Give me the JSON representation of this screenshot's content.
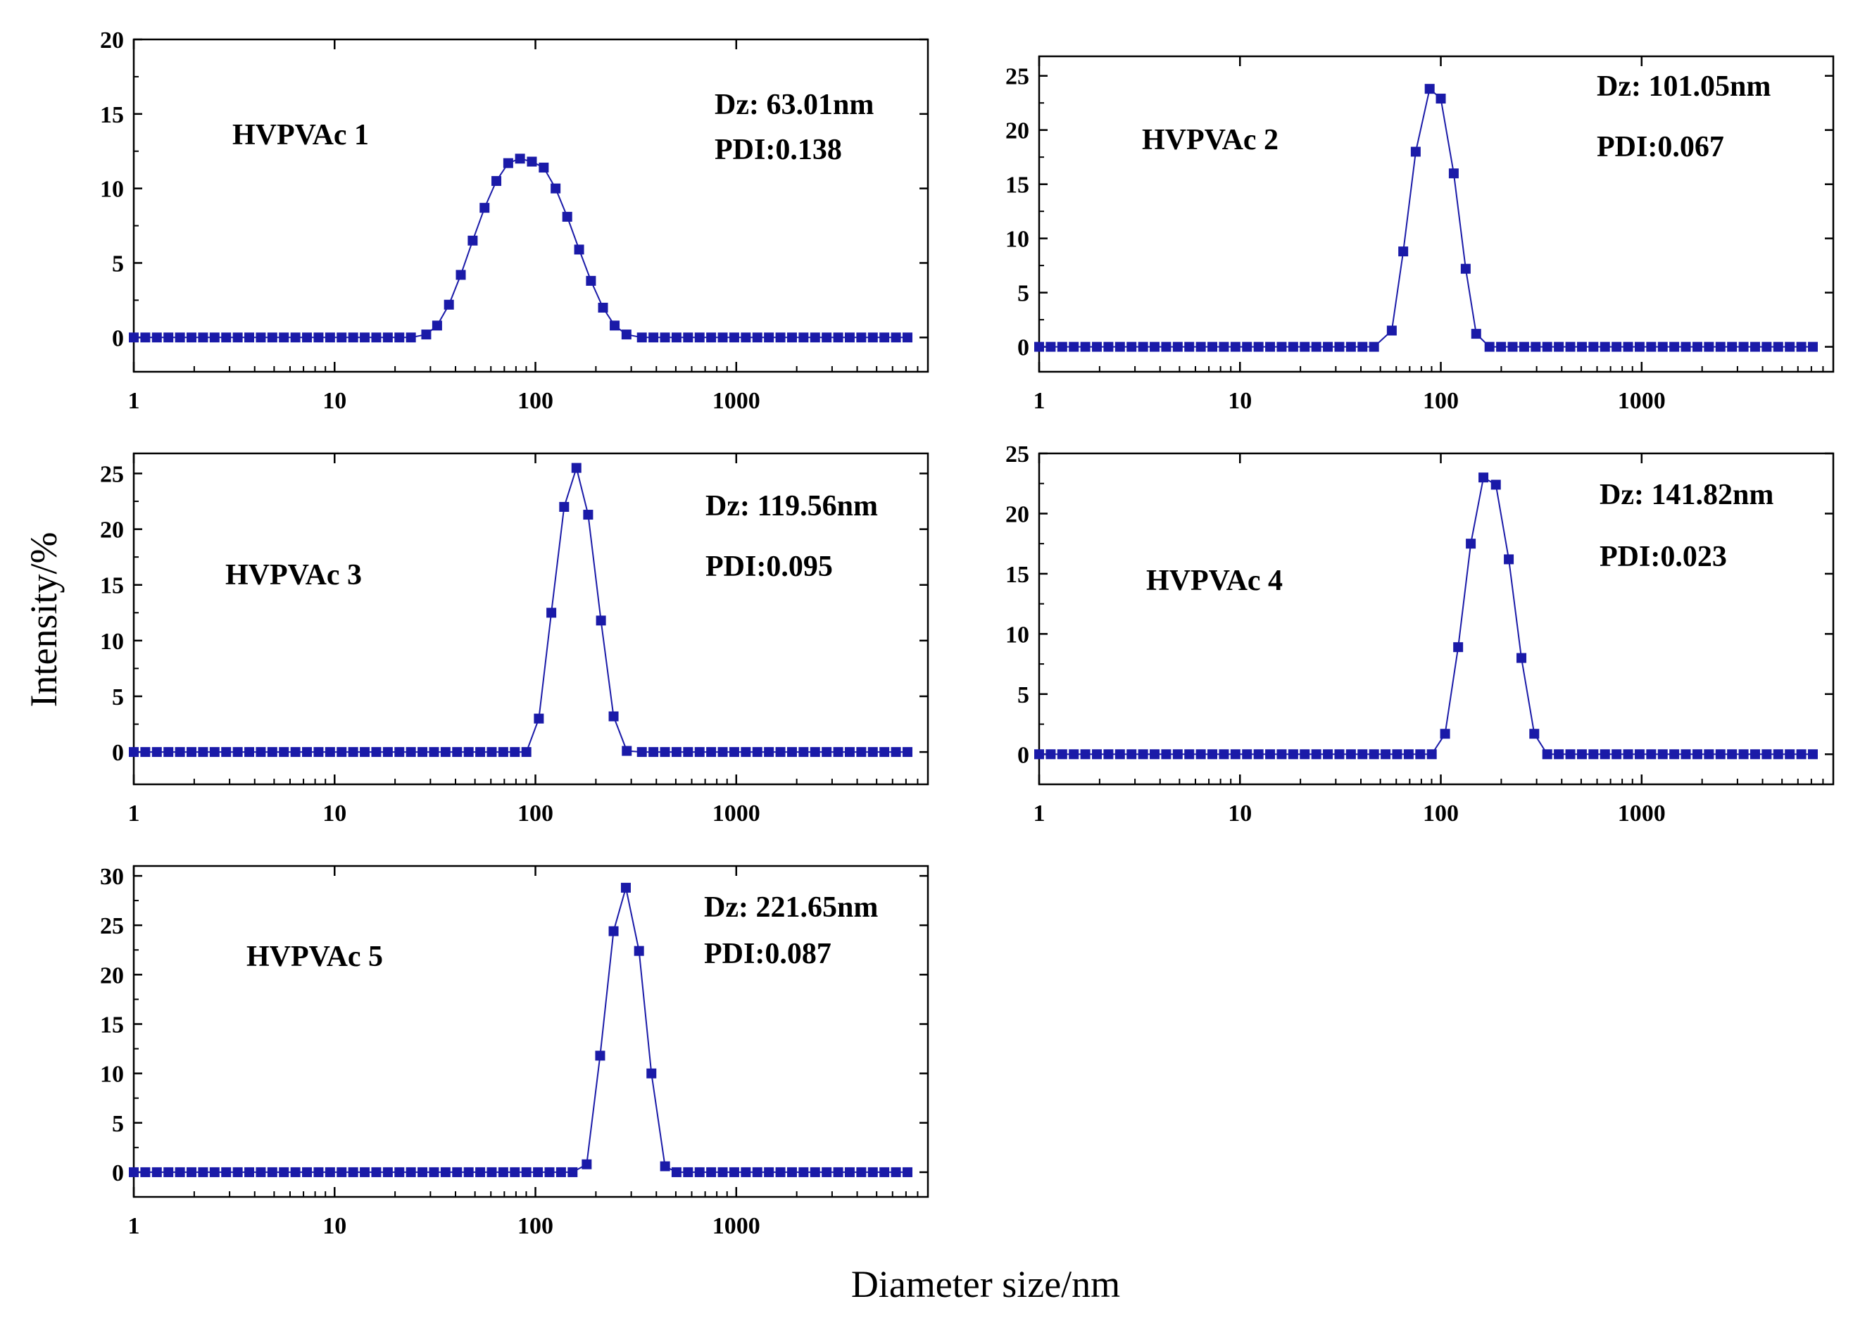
{
  "figure": {
    "ylabel": "Intensity/%",
    "xlabel": "Diameter size/nm",
    "colors": {
      "series": "#1a1aa8",
      "axis": "#000000",
      "background": "#ffffff"
    }
  },
  "chart_data": [
    {
      "type": "scatter",
      "name": "HVPVAc 1",
      "annotations": [
        "Dz: 63.01nm",
        "PDI:0.138"
      ],
      "x_scale": "log",
      "xlim": [
        1,
        9000
      ],
      "xticks": [
        1,
        10,
        100,
        1000
      ],
      "xtick_labels": [
        "1",
        "10",
        "100",
        "1000"
      ],
      "ylim": [
        -2.3,
        20
      ],
      "yticks": [
        0,
        5,
        10,
        15,
        20
      ],
      "peak": {
        "x": 90,
        "y": 12.0,
        "sigma": 0.2
      },
      "peak_values": [
        [
          28.6,
          0.2
        ],
        [
          32.4,
          0.8
        ],
        [
          37.1,
          2.2
        ],
        [
          42.5,
          4.2
        ],
        [
          48.7,
          6.5
        ],
        [
          55.8,
          8.7
        ],
        [
          63.9,
          10.5
        ],
        [
          73.2,
          11.7
        ],
        [
          83.8,
          12.0
        ],
        [
          96,
          11.8
        ],
        [
          110,
          11.4
        ],
        [
          126,
          10.0
        ],
        [
          144,
          8.1
        ],
        [
          165,
          5.9
        ],
        [
          189,
          3.8
        ],
        [
          217,
          2.0
        ],
        [
          248,
          0.8
        ],
        [
          284,
          0.2
        ]
      ]
    },
    {
      "type": "scatter",
      "name": "HVPVAc 2",
      "annotations": [
        "Dz: 101.05nm",
        "PDI:0.067"
      ],
      "x_scale": "log",
      "xlim": [
        1,
        9000
      ],
      "xticks": [
        1,
        10,
        100,
        1000
      ],
      "xtick_labels": [
        "1",
        "10",
        "100",
        "1000"
      ],
      "ylim": [
        -2.3,
        26.8
      ],
      "yticks": [
        0,
        5,
        10,
        15,
        20,
        25
      ],
      "peak": {
        "x": 96,
        "y": 24.0,
        "sigma": 0.108
      },
      "peak_values": [
        [
          57,
          1.5
        ],
        [
          65,
          8.8
        ],
        [
          75,
          18.0
        ],
        [
          88,
          23.8
        ],
        [
          100,
          22.9
        ],
        [
          116,
          16.0
        ],
        [
          133,
          7.2
        ],
        [
          150,
          1.2
        ]
      ]
    },
    {
      "type": "scatter",
      "name": "HVPVAc 3",
      "annotations": [
        "Dz: 119.56nm",
        "PDI:0.095"
      ],
      "x_scale": "log",
      "xlim": [
        1,
        9000
      ],
      "xticks": [
        1,
        10,
        100,
        1000
      ],
      "xtick_labels": [
        "1",
        "10",
        "100",
        "1000"
      ],
      "ylim": [
        -2.9,
        26.8
      ],
      "yticks": [
        0,
        5,
        10,
        15,
        20,
        25
      ],
      "peak": {
        "x": 160,
        "y": 25.5,
        "sigma": 0.11
      },
      "peak_values": [
        [
          104,
          3.0
        ],
        [
          120,
          12.5
        ],
        [
          139,
          22.0
        ],
        [
          160,
          25.5
        ],
        [
          183,
          21.3
        ],
        [
          212,
          11.8
        ],
        [
          245,
          3.2
        ],
        [
          285,
          0.1
        ]
      ]
    },
    {
      "type": "scatter",
      "name": "HVPVAc 4",
      "annotations": [
        "Dz: 141.82nm",
        "PDI:0.023"
      ],
      "x_scale": "log",
      "xlim": [
        1,
        9000
      ],
      "xticks": [
        1,
        10,
        100,
        1000
      ],
      "xtick_labels": [
        "1",
        "10",
        "100",
        "1000"
      ],
      "ylim": [
        -2.5,
        25
      ],
      "yticks": [
        0,
        5,
        10,
        15,
        20,
        25
      ],
      "peak": {
        "x": 170,
        "y": 23.0,
        "sigma": 0.113
      },
      "peak_values": [
        [
          105,
          1.7
        ],
        [
          122,
          8.9
        ],
        [
          141,
          17.5
        ],
        [
          163,
          23.0
        ],
        [
          188,
          22.4
        ],
        [
          218,
          16.2
        ],
        [
          252,
          8.0
        ],
        [
          292,
          1.7
        ]
      ]
    },
    {
      "type": "scatter",
      "name": "HVPVAc 5",
      "annotations": [
        "Dz: 221.65nm",
        "PDI:0.087"
      ],
      "x_scale": "log",
      "xlim": [
        1,
        9000
      ],
      "xticks": [
        1,
        10,
        100,
        1000
      ],
      "xtick_labels": [
        "1",
        "10",
        "100",
        "1000"
      ],
      "ylim": [
        -2.5,
        31
      ],
      "yticks": [
        0,
        5,
        10,
        15,
        20,
        25,
        30
      ],
      "peak": {
        "x": 280,
        "y": 29.0,
        "sigma": 0.09
      },
      "peak_values": [
        [
          180,
          0.8
        ],
        [
          210,
          11.8
        ],
        [
          245,
          24.4
        ],
        [
          282,
          28.8
        ],
        [
          328,
          22.4
        ],
        [
          378,
          10.0
        ],
        [
          442,
          0.6
        ]
      ]
    }
  ]
}
